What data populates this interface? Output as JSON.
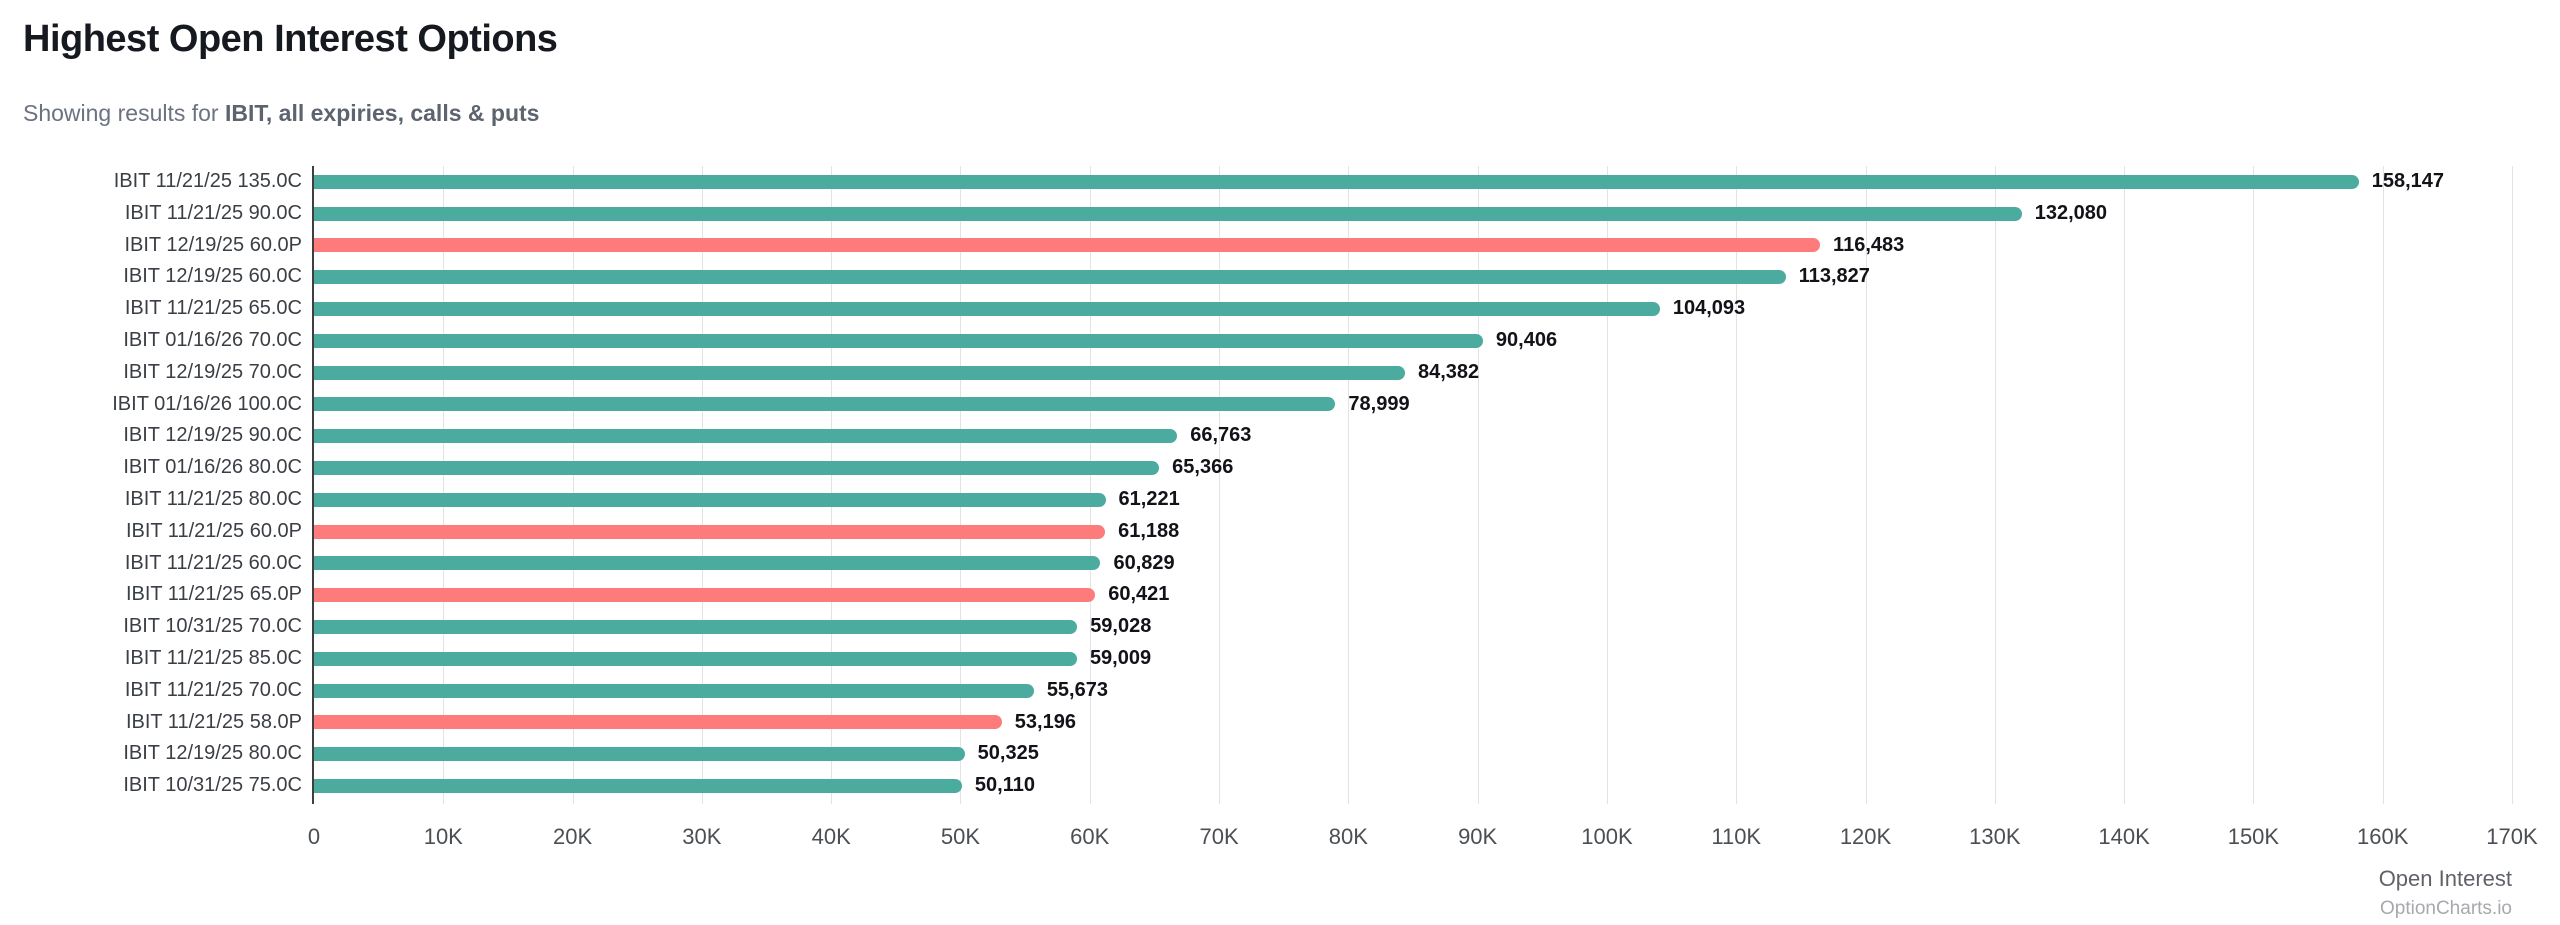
{
  "header": {
    "title": "Highest Open Interest Options",
    "subtitle_prefix": "Showing results for ",
    "subtitle_filter": "IBIT, all expiries, calls & puts"
  },
  "footer": {
    "watermark": "OptionCharts.io"
  },
  "colors": {
    "call": "#4CAB9F",
    "put": "#FD7B7B",
    "gridline": "#e3e3e3",
    "axis_line": "#3f3f3f",
    "value_label": "#111318"
  },
  "chart_data": {
    "type": "bar",
    "orientation": "horizontal",
    "title": "Highest Open Interest Options",
    "xlabel": "Open Interest",
    "ylabel": "",
    "xlim": [
      0,
      170000
    ],
    "grid": true,
    "legend": "none",
    "x_ticks": [
      "0",
      "10K",
      "20K",
      "30K",
      "40K",
      "50K",
      "60K",
      "70K",
      "80K",
      "90K",
      "100K",
      "110K",
      "120K",
      "130K",
      "140K",
      "150K",
      "160K",
      "170K"
    ],
    "x_tick_values": [
      0,
      10000,
      20000,
      30000,
      40000,
      50000,
      60000,
      70000,
      80000,
      90000,
      100000,
      110000,
      120000,
      130000,
      140000,
      150000,
      160000,
      170000
    ],
    "categories": [
      "IBIT 11/21/25 135.0C",
      "IBIT 11/21/25 90.0C",
      "IBIT 12/19/25 60.0P",
      "IBIT 12/19/25 60.0C",
      "IBIT 11/21/25 65.0C",
      "IBIT 01/16/26 70.0C",
      "IBIT 12/19/25 70.0C",
      "IBIT 01/16/26 100.0C",
      "IBIT 12/19/25 90.0C",
      "IBIT 01/16/26 80.0C",
      "IBIT 11/21/25 80.0C",
      "IBIT 11/21/25 60.0P",
      "IBIT 11/21/25 60.0C",
      "IBIT 11/21/25 65.0P",
      "IBIT 10/31/25 70.0C",
      "IBIT 11/21/25 85.0C",
      "IBIT 11/21/25 70.0C",
      "IBIT 11/21/25 58.0P",
      "IBIT 12/19/25 80.0C",
      "IBIT 10/31/25 75.0C"
    ],
    "values": [
      158147,
      132080,
      116483,
      113827,
      104093,
      90406,
      84382,
      78999,
      66763,
      65366,
      61221,
      61188,
      60829,
      60421,
      59028,
      59009,
      55673,
      53196,
      50325,
      50110
    ],
    "value_labels": [
      "158,147",
      "132,080",
      "116,483",
      "113,827",
      "104,093",
      "90,406",
      "84,382",
      "78,999",
      "66,763",
      "65,366",
      "61,221",
      "61,188",
      "60,829",
      "60,421",
      "59,028",
      "59,009",
      "55,673",
      "53,196",
      "50,325",
      "50,110"
    ],
    "types": [
      "call",
      "call",
      "put",
      "call",
      "call",
      "call",
      "call",
      "call",
      "call",
      "call",
      "call",
      "put",
      "call",
      "put",
      "call",
      "call",
      "call",
      "put",
      "call",
      "call"
    ]
  }
}
